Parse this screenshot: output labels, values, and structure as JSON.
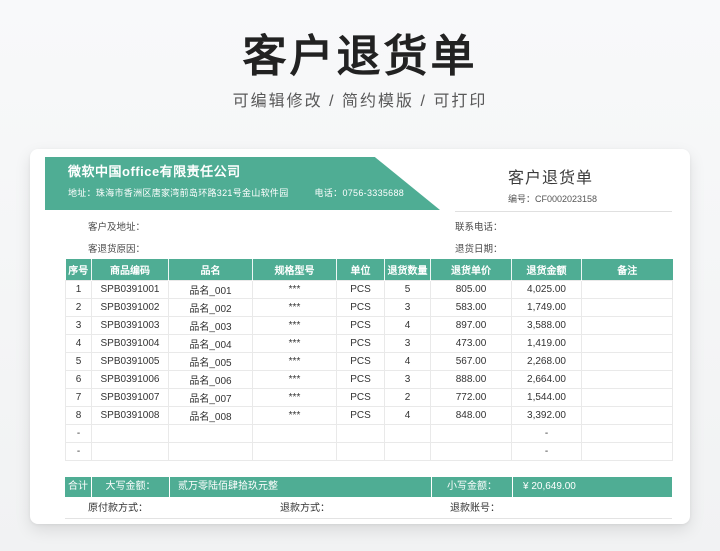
{
  "page": {
    "title": "客户退货单",
    "subtitle": "可编辑修改 / 简约模版 / 可打印"
  },
  "company": {
    "name": "微软中国office有限责任公司",
    "address_label": "地址：",
    "address": "珠海市香洲区唐家湾前岛环路321号金山软件园",
    "phone_label": "电话：",
    "phone": "0756-3335688"
  },
  "doc": {
    "title": "客户退货单",
    "number_label": "编号：",
    "number": "CF0002023158"
  },
  "meta": {
    "customer_label": "客户及地址：",
    "phone_label": "联系电话：",
    "reason_label": "客退货原因：",
    "date_label": "退货日期："
  },
  "table": {
    "headers": [
      "序号",
      "商品编码",
      "品名",
      "规格型号",
      "单位",
      "退货数量",
      "退货单价",
      "退货金额",
      "备注"
    ],
    "rows": [
      [
        "1",
        "SPB0391001",
        "品名_001",
        "***",
        "PCS",
        "5",
        "805.00",
        "4,025.00",
        ""
      ],
      [
        "2",
        "SPB0391002",
        "品名_002",
        "***",
        "PCS",
        "3",
        "583.00",
        "1,749.00",
        ""
      ],
      [
        "3",
        "SPB0391003",
        "品名_003",
        "***",
        "PCS",
        "4",
        "897.00",
        "3,588.00",
        ""
      ],
      [
        "4",
        "SPB0391004",
        "品名_004",
        "***",
        "PCS",
        "3",
        "473.00",
        "1,419.00",
        ""
      ],
      [
        "5",
        "SPB0391005",
        "品名_005",
        "***",
        "PCS",
        "4",
        "567.00",
        "2,268.00",
        ""
      ],
      [
        "6",
        "SPB0391006",
        "品名_006",
        "***",
        "PCS",
        "3",
        "888.00",
        "2,664.00",
        ""
      ],
      [
        "7",
        "SPB0391007",
        "品名_007",
        "***",
        "PCS",
        "2",
        "772.00",
        "1,544.00",
        ""
      ],
      [
        "8",
        "SPB0391008",
        "品名_008",
        "***",
        "PCS",
        "4",
        "848.00",
        "3,392.00",
        ""
      ],
      [
        "-",
        "",
        "",
        "",
        "",
        "",
        "",
        "-",
        ""
      ],
      [
        "-",
        "",
        "",
        "",
        "",
        "",
        "",
        "-",
        ""
      ]
    ],
    "total": {
      "label": "合计",
      "amount_words_label": "大写金额：",
      "amount_words": "贰万零陆佰肆拾玖元整",
      "amount_label": "小写金额：",
      "amount": "¥ 20,649.00"
    }
  },
  "footer": {
    "original_payment_label": "原付款方式：",
    "refund_method_label": "退款方式：",
    "refund_account_label": "退款账号："
  },
  "colors": {
    "accent_green": "#4FAD94",
    "grid_line": "#e9e9e9"
  }
}
